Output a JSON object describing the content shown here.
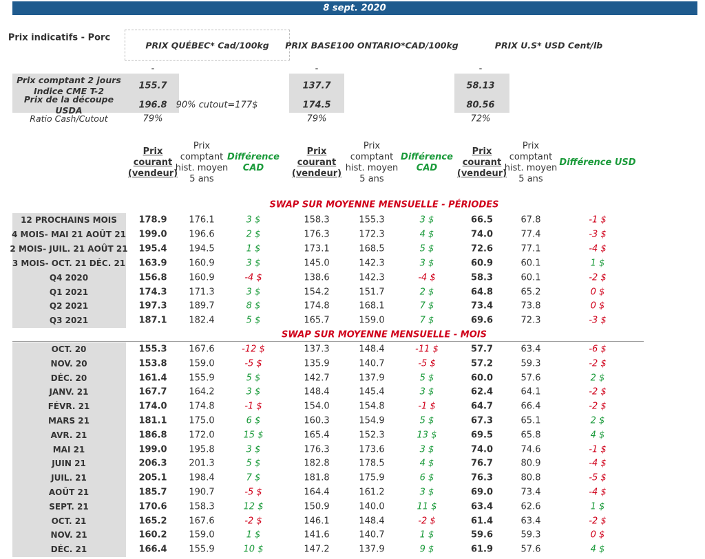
{
  "header": {
    "date": "8 sept. 2020",
    "title": "Prix indicatifs - Porc",
    "markets": [
      "PRIX QUÉBEC* Cad/100kg",
      "PRIX BASE100 ONTARIO*CAD/100kg",
      "PRIX U.S* USD Cent/lb"
    ],
    "dash": "-"
  },
  "summary": [
    {
      "label": "Prix comptant 2 jours Indice CME T-2",
      "values": [
        "155.7",
        "137.7",
        "58.13"
      ]
    },
    {
      "label": "Prix de la découpe USDA",
      "values": [
        "196.8",
        "174.5",
        "80.56"
      ],
      "note": "90% cutout=177$"
    },
    {
      "label": "Ratio Cash/Cutout",
      "values": [
        "79%",
        "79%",
        "72%"
      ]
    }
  ],
  "columns": [
    "Prix courant (vendeur)",
    "Prix comptant hist. moyen 5 ans",
    "Différence CAD",
    "Prix courant (vendeur)",
    "Prix comptant hist. moyen 5 ans",
    "Différence CAD",
    "Prix courant (vendeur)",
    "Prix comptant hist. moyen 5 ans",
    "Différence USD"
  ],
  "sections": [
    {
      "title": "SWAP SUR MOYENNE MENSUELLE - PÉRIODES",
      "rows": [
        [
          "12 PROCHAINS MOIS",
          "178.9",
          "176.1",
          "3 $",
          "158.3",
          "155.3",
          "3 $",
          "66.5",
          "67.8",
          "-1 $"
        ],
        [
          "4 MOIS- MAI 21 AOÛT 21",
          "199.0",
          "196.6",
          "2 $",
          "176.3",
          "172.3",
          "4 $",
          "74.0",
          "77.4",
          "-3 $"
        ],
        [
          "2 MOIS- JUIL. 21 AOÛT 21",
          "195.4",
          "194.5",
          "1 $",
          "173.1",
          "168.5",
          "5 $",
          "72.6",
          "77.1",
          "-4 $"
        ],
        [
          "3 MOIS- OCT. 21 DÉC. 21",
          "163.9",
          "160.9",
          "3 $",
          "145.0",
          "142.3",
          "3 $",
          "60.9",
          "60.1",
          "1 $"
        ],
        [
          "Q4 2020",
          "156.8",
          "160.9",
          "-4 $",
          "138.6",
          "142.3",
          "-4 $",
          "58.3",
          "60.1",
          "-2 $"
        ],
        [
          "Q1 2021",
          "174.3",
          "171.3",
          "3 $",
          "154.2",
          "151.7",
          "2 $",
          "64.8",
          "65.2",
          "0 $"
        ],
        [
          "Q2 2021",
          "197.3",
          "189.7",
          "8 $",
          "174.8",
          "168.1",
          "7 $",
          "73.4",
          "73.8",
          "0 $"
        ],
        [
          "Q3 2021",
          "187.1",
          "182.4",
          "5 $",
          "165.7",
          "159.0",
          "7 $",
          "69.6",
          "72.3",
          "-3 $"
        ]
      ]
    },
    {
      "title": "SWAP SUR MOYENNE MENSUELLE - MOIS",
      "rows": [
        [
          "OCT. 20",
          "155.3",
          "167.6",
          "-12 $",
          "137.3",
          "148.4",
          "-11 $",
          "57.7",
          "63.4",
          "-6 $"
        ],
        [
          "NOV. 20",
          "153.8",
          "159.0",
          "-5 $",
          "135.9",
          "140.7",
          "-5 $",
          "57.2",
          "59.3",
          "-2 $"
        ],
        [
          "DÉC. 20",
          "161.4",
          "155.9",
          "5 $",
          "142.7",
          "137.9",
          "5 $",
          "60.0",
          "57.6",
          "2 $"
        ],
        [
          "JANV. 21",
          "167.7",
          "164.2",
          "3 $",
          "148.4",
          "145.4",
          "3 $",
          "62.4",
          "64.1",
          "-2 $"
        ],
        [
          "FÉVR. 21",
          "174.0",
          "174.8",
          "-1 $",
          "154.0",
          "154.8",
          "-1 $",
          "64.7",
          "66.4",
          "-2 $"
        ],
        [
          "MARS 21",
          "181.1",
          "175.0",
          "6 $",
          "160.3",
          "154.9",
          "5 $",
          "67.3",
          "65.1",
          "2 $"
        ],
        [
          "AVR. 21",
          "186.8",
          "172.0",
          "15 $",
          "165.4",
          "152.3",
          "13 $",
          "69.5",
          "65.8",
          "4 $"
        ],
        [
          "MAI 21",
          "199.0",
          "195.8",
          "3 $",
          "176.3",
          "173.6",
          "3 $",
          "74.0",
          "74.6",
          "-1 $"
        ],
        [
          "JUIN 21",
          "206.3",
          "201.3",
          "5 $",
          "182.8",
          "178.5",
          "4 $",
          "76.7",
          "80.9",
          "-4 $"
        ],
        [
          "JUIL. 21",
          "205.1",
          "198.4",
          "7 $",
          "181.8",
          "175.9",
          "6 $",
          "76.3",
          "80.8",
          "-5 $"
        ],
        [
          "AOÛT 21",
          "185.7",
          "190.7",
          "-5 $",
          "164.4",
          "161.2",
          "3 $",
          "69.0",
          "73.4",
          "-4 $"
        ],
        [
          "SEPT. 21",
          "170.6",
          "158.3",
          "12 $",
          "150.9",
          "140.0",
          "11 $",
          "63.4",
          "62.6",
          "1 $"
        ],
        [
          "OCT. 21",
          "165.2",
          "167.6",
          "-2 $",
          "146.1",
          "148.4",
          "-2 $",
          "61.4",
          "63.4",
          "-2 $"
        ],
        [
          "NOV. 21",
          "160.2",
          "159.0",
          "1 $",
          "141.6",
          "140.7",
          "1 $",
          "59.6",
          "59.3",
          "0 $"
        ],
        [
          "DÉC. 21",
          "166.4",
          "155.9",
          "10 $",
          "147.2",
          "137.9",
          "9 $",
          "61.9",
          "57.6",
          "4 $"
        ]
      ]
    }
  ]
}
